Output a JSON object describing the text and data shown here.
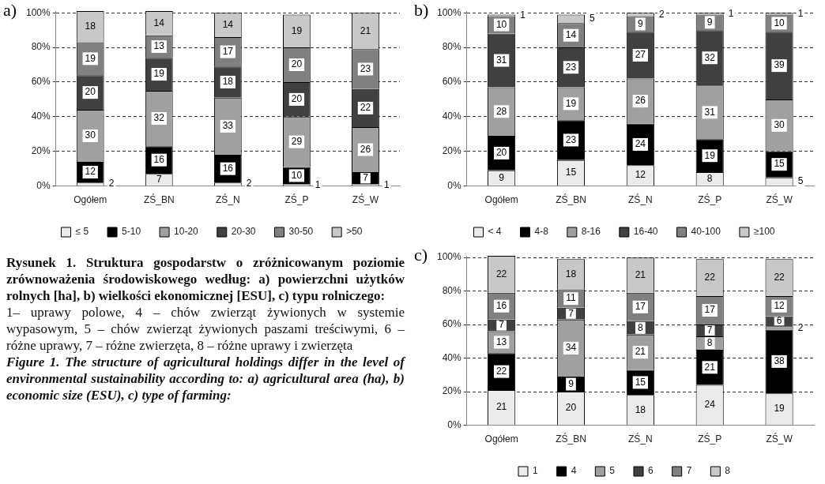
{
  "chart_data": [
    {
      "type": "bar",
      "title": "a)",
      "stacked": true,
      "data_labels": true,
      "grid": "y",
      "legend": "bottom",
      "categories": [
        "Ogółem",
        "ZŚ_BN",
        "ZŚ_N",
        "ZŚ_P",
        "ZŚ_W"
      ],
      "ylim": [
        0,
        101
      ],
      "yticks": [
        {
          "value": 0,
          "label": "0%"
        },
        {
          "value": 20,
          "label": "20%"
        },
        {
          "value": 40,
          "label": "40%"
        },
        {
          "value": 60,
          "label": "60%"
        },
        {
          "value": 80,
          "label": "80%"
        },
        {
          "value": 100,
          "label": "100%"
        }
      ],
      "series": [
        {
          "name": "≤ 5",
          "color": "#ebebeb",
          "values": [
            2,
            7,
            2,
            1,
            1
          ]
        },
        {
          "name": "5-10",
          "color": "#000000",
          "values": [
            12,
            16,
            16,
            10,
            7
          ]
        },
        {
          "name": "10-20",
          "color": "#a0a0a0",
          "values": [
            30,
            32,
            33,
            29,
            26
          ]
        },
        {
          "name": "20-30",
          "color": "#404040",
          "values": [
            20,
            19,
            18,
            20,
            22
          ]
        },
        {
          "name": "30-50",
          "color": "#808080",
          "values": [
            19,
            13,
            17,
            20,
            23
          ]
        },
        {
          "name": ">50",
          "color": "#c8c8c8",
          "values": [
            18,
            14,
            14,
            19,
            21
          ]
        }
      ],
      "annotations": [
        "Rysunek 1. Struktura gospodarstw o zróżnicowanym poziomie zrównoważenia środowiskowego według: a) powierzchni użytków rolnych [ha], b) wielkości ekonomicznej [ESU], c) typu rolniczego:",
        "1– uprawy polowe, 4 – chów zwierząt żywionych w systemie wypasowym, 5 – chów zwierząt żywionych paszami treściwymi, 6 – różne uprawy, 7 – różne zwierzęta, 8 – różne uprawy i zwierzęta",
        "Figure 1. The structure of agricultural holdings differ in the level of environmental sustainability according to: a) agricultural area (ha), b) economic size (ESU), c) type of farming:"
      ]
    },
    {
      "type": "bar",
      "title": "b)",
      "stacked": true,
      "data_labels": true,
      "grid": "y",
      "legend": "bottom",
      "categories": [
        "Ogółem",
        "ZŚ_BN",
        "ZŚ_N",
        "ZŚ_P",
        "ZŚ_W"
      ],
      "ylim": [
        0,
        101
      ],
      "yticks": [
        {
          "value": 0,
          "label": "0%"
        },
        {
          "value": 20,
          "label": "20%"
        },
        {
          "value": 40,
          "label": "40%"
        },
        {
          "value": 60,
          "label": "60%"
        },
        {
          "value": 80,
          "label": "80%"
        },
        {
          "value": 100,
          "label": "100%"
        }
      ],
      "series": [
        {
          "name": "< 4",
          "color": "#ebebeb",
          "values": [
            9,
            15,
            12,
            8,
            5
          ]
        },
        {
          "name": "4-8",
          "color": "#000000",
          "values": [
            20,
            23,
            24,
            19,
            15
          ]
        },
        {
          "name": "8-16",
          "color": "#a0a0a0",
          "values": [
            28,
            19,
            26,
            31,
            30
          ]
        },
        {
          "name": "16-40",
          "color": "#404040",
          "values": [
            31,
            23,
            27,
            32,
            39
          ]
        },
        {
          "name": "40-100",
          "color": "#808080",
          "values": [
            10,
            14,
            9,
            9,
            10
          ]
        },
        {
          "name": "≥100",
          "color": "#c8c8c8",
          "values": [
            1,
            5,
            2,
            1,
            1
          ]
        }
      ]
    },
    {
      "type": "bar",
      "title": "c)",
      "stacked": true,
      "data_labels": true,
      "grid": "y",
      "legend": "bottom",
      "categories": [
        "Ogółem",
        "ZŚ_BN",
        "ZŚ_N",
        "ZŚ_P",
        "ZŚ_W"
      ],
      "ylim": [
        0,
        101
      ],
      "yticks": [
        {
          "value": 0,
          "label": "0%"
        },
        {
          "value": 20,
          "label": "20%"
        },
        {
          "value": 40,
          "label": "40%"
        },
        {
          "value": 60,
          "label": "60%"
        },
        {
          "value": 80,
          "label": "80%"
        },
        {
          "value": 100,
          "label": "100%"
        }
      ],
      "series": [
        {
          "name": "1",
          "color": "#ebebeb",
          "values": [
            21,
            20,
            18,
            24,
            19
          ]
        },
        {
          "name": "4",
          "color": "#000000",
          "values": [
            22,
            9,
            15,
            21,
            38
          ]
        },
        {
          "name": "5",
          "color": "#a0a0a0",
          "values": [
            13,
            34,
            21,
            8,
            2
          ]
        },
        {
          "name": "6",
          "color": "#404040",
          "values": [
            7,
            7,
            8,
            7,
            6
          ]
        },
        {
          "name": "7",
          "color": "#808080",
          "values": [
            16,
            11,
            17,
            17,
            12
          ]
        },
        {
          "name": "8",
          "color": "#c8c8c8",
          "values": [
            22,
            18,
            21,
            22,
            22
          ]
        }
      ]
    }
  ]
}
